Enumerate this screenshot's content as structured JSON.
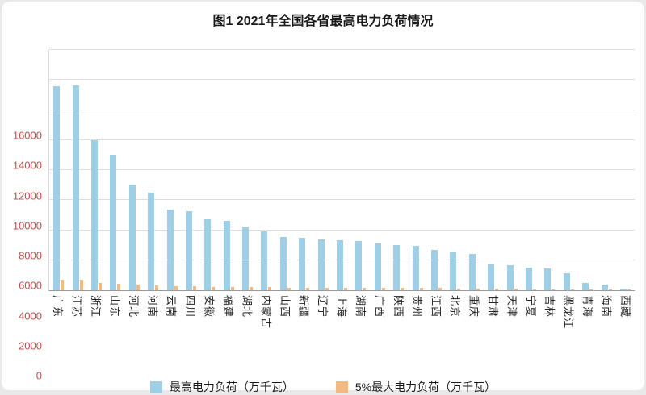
{
  "colors": {
    "primary": "#9fcfe7",
    "secondary": "#f3b983",
    "tick_label": "#c0504d",
    "grid": "#dddddd",
    "axis": "#9a9a9a"
  },
  "chart_data": {
    "type": "bar",
    "title": "图1 2021年全国各省最高电力负荷情况",
    "categories": [
      "广东",
      "江苏",
      "浙江",
      "山东",
      "河北",
      "河南",
      "云南",
      "四川",
      "安徽",
      "福建",
      "湖北",
      "内蒙古",
      "山西",
      "新疆",
      "辽宁",
      "上海",
      "湖南",
      "广西",
      "陕西",
      "贵州",
      "江西",
      "北京",
      "重庆",
      "甘肃",
      "天津",
      "宁夏",
      "吉林",
      "黑龙江",
      "青海",
      "海南",
      "西藏"
    ],
    "series": [
      {
        "name": "最高电力负荷（万千瓦）",
        "color": "#9fcfe7",
        "values": [
          13600,
          13650,
          10000,
          9000,
          7050,
          6500,
          5350,
          5250,
          4700,
          4600,
          4200,
          3900,
          3550,
          3500,
          3400,
          3350,
          3300,
          3100,
          3000,
          2950,
          2700,
          2600,
          2400,
          1700,
          1650,
          1500,
          1450,
          1150,
          480,
          380,
          130
        ]
      },
      {
        "name": "5%最大电力负荷（万千瓦）",
        "color": "#f3b983",
        "values": [
          680,
          683,
          500,
          450,
          353,
          325,
          268,
          263,
          235,
          230,
          210,
          195,
          178,
          175,
          170,
          168,
          165,
          155,
          150,
          148,
          135,
          130,
          120,
          85,
          83,
          75,
          73,
          58,
          24,
          19,
          7
        ]
      }
    ],
    "xlabel": "",
    "ylabel": "",
    "ylim": [
      0,
      16000
    ],
    "ytick_step": 2000,
    "grid": true,
    "legend_position": "bottom"
  }
}
